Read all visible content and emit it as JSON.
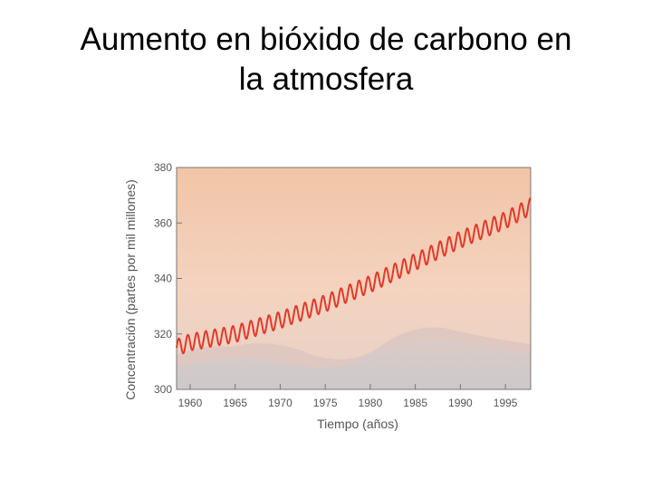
{
  "slide": {
    "title_line1": "Aumento en bióxido de carbono en",
    "title_line2": "la atmosfera"
  },
  "chart_data": {
    "type": "line",
    "xlabel": "Tiempo (años)",
    "ylabel": "Concentración (partes por mil millones)",
    "xlim": [
      1958.5,
      1997.8
    ],
    "ylim": [
      300,
      380
    ],
    "x_ticks": [
      "1960",
      "1965",
      "1970",
      "1975",
      "1980",
      "1985",
      "1990",
      "1995"
    ],
    "y_ticks": [
      "300",
      "320",
      "340",
      "360",
      "380"
    ],
    "grid": false,
    "series": [
      {
        "color": "#e03a2a",
        "x": [
          1958.5,
          1960,
          1965,
          1970,
          1975,
          1980,
          1985,
          1990,
          1995,
          1997.8
        ],
        "values": [
          315,
          317,
          320,
          325,
          331,
          338,
          346,
          354,
          361,
          366
        ],
        "seasonal_amplitude": 3
      }
    ],
    "background_colors": [
      "#f4c9a8",
      "#e9cfc0",
      "#d7d3d3"
    ]
  }
}
